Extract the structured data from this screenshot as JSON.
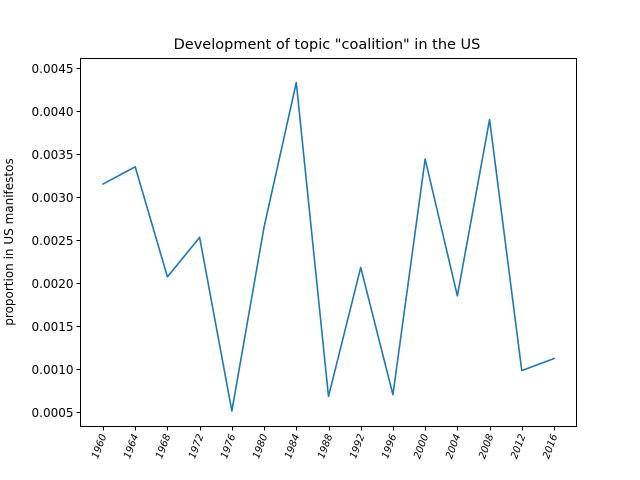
{
  "chart_data": {
    "type": "line",
    "title": "Development of topic \"coalition\" in the US",
    "xlabel": "",
    "ylabel": "proportion in US manifestos",
    "categories": [
      "1960",
      "1964",
      "1968",
      "1972",
      "1976",
      "1980",
      "1984",
      "1988",
      "1992",
      "1996",
      "2000",
      "2004",
      "2008",
      "2012",
      "2016"
    ],
    "series": [
      {
        "name": "coalition",
        "color": "#1f77b4",
        "values": [
          0.00315,
          0.00335,
          0.00207,
          0.00253,
          0.00051,
          0.00265,
          0.00433,
          0.00068,
          0.00218,
          0.0007,
          0.00344,
          0.00185,
          0.0039,
          0.00098,
          0.00112
        ]
      }
    ],
    "ylim": [
      0.00033,
      0.00461
    ],
    "yticks": [
      0.0005,
      0.001,
      0.0015,
      0.002,
      0.0025,
      0.003,
      0.0035,
      0.004,
      0.0045
    ],
    "ytick_labels": [
      "0.0005",
      "0.0010",
      "0.0015",
      "0.0020",
      "0.0025",
      "0.0030",
      "0.0035",
      "0.0040",
      "0.0045"
    ],
    "grid": false,
    "legend": "none"
  }
}
